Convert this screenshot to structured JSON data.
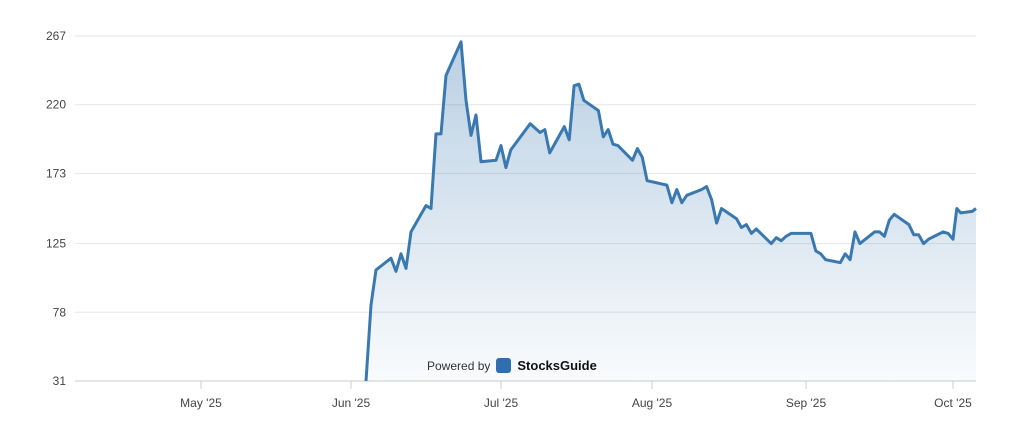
{
  "chart_data": {
    "type": "area",
    "title": "",
    "xlabel": "",
    "ylabel": "",
    "ylim": [
      31,
      267
    ],
    "y_ticks": [
      "31",
      "78",
      "125",
      "173",
      "220",
      "267"
    ],
    "x_ticks": [
      {
        "label": "May '25",
        "date": "2025-05-01"
      },
      {
        "label": "Jun '25",
        "date": "2025-06-01"
      },
      {
        "label": "Jul '25",
        "date": "2025-07-01"
      },
      {
        "label": "Aug '25",
        "date": "2025-08-01"
      },
      {
        "label": "Sep '25",
        "date": "2025-09-01"
      },
      {
        "label": "Oct '25",
        "date": "2025-10-01"
      }
    ],
    "xlim": [
      "2025-04-06",
      "2025-10-07"
    ],
    "grid": true,
    "line_color": "#3a78b0",
    "series": [
      {
        "points": [
          [
            "2025-06-04",
            31
          ],
          [
            "2025-06-05",
            83
          ],
          [
            "2025-06-06",
            107
          ],
          [
            "2025-06-09",
            115
          ],
          [
            "2025-06-10",
            106
          ],
          [
            "2025-06-11",
            118
          ],
          [
            "2025-06-12",
            108
          ],
          [
            "2025-06-13",
            133
          ],
          [
            "2025-06-16",
            151
          ],
          [
            "2025-06-17",
            149
          ],
          [
            "2025-06-18",
            200
          ],
          [
            "2025-06-19",
            200
          ],
          [
            "2025-06-20",
            240
          ],
          [
            "2025-06-23",
            263
          ],
          [
            "2025-06-24",
            223
          ],
          [
            "2025-06-25",
            199
          ],
          [
            "2025-06-26",
            213
          ],
          [
            "2025-06-27",
            181
          ],
          [
            "2025-06-30",
            182
          ],
          [
            "2025-07-01",
            192
          ],
          [
            "2025-07-02",
            177
          ],
          [
            "2025-07-03",
            189
          ],
          [
            "2025-07-07",
            207
          ],
          [
            "2025-07-08",
            204
          ],
          [
            "2025-07-09",
            201
          ],
          [
            "2025-07-10",
            203
          ],
          [
            "2025-07-11",
            187
          ],
          [
            "2025-07-14",
            205
          ],
          [
            "2025-07-15",
            196
          ],
          [
            "2025-07-16",
            233
          ],
          [
            "2025-07-17",
            234
          ],
          [
            "2025-07-18",
            223
          ],
          [
            "2025-07-21",
            216
          ],
          [
            "2025-07-22",
            198
          ],
          [
            "2025-07-23",
            203
          ],
          [
            "2025-07-24",
            193
          ],
          [
            "2025-07-25",
            192
          ],
          [
            "2025-07-28",
            182
          ],
          [
            "2025-07-29",
            190
          ],
          [
            "2025-07-30",
            184
          ],
          [
            "2025-07-31",
            168
          ],
          [
            "2025-08-04",
            165
          ],
          [
            "2025-08-05",
            153
          ],
          [
            "2025-08-06",
            162
          ],
          [
            "2025-08-07",
            153
          ],
          [
            "2025-08-08",
            158
          ],
          [
            "2025-08-11",
            162
          ],
          [
            "2025-08-12",
            164
          ],
          [
            "2025-08-13",
            155
          ],
          [
            "2025-08-14",
            139
          ],
          [
            "2025-08-15",
            149
          ],
          [
            "2025-08-18",
            142
          ],
          [
            "2025-08-19",
            136
          ],
          [
            "2025-08-20",
            138
          ],
          [
            "2025-08-21",
            132
          ],
          [
            "2025-08-22",
            135
          ],
          [
            "2025-08-25",
            125
          ],
          [
            "2025-08-26",
            129
          ],
          [
            "2025-08-27",
            127
          ],
          [
            "2025-08-28",
            130
          ],
          [
            "2025-08-29",
            132
          ],
          [
            "2025-09-02",
            132
          ],
          [
            "2025-09-03",
            120
          ],
          [
            "2025-09-04",
            118
          ],
          [
            "2025-09-05",
            114
          ],
          [
            "2025-09-08",
            112
          ],
          [
            "2025-09-09",
            118
          ],
          [
            "2025-09-10",
            114
          ],
          [
            "2025-09-11",
            133
          ],
          [
            "2025-09-12",
            125
          ],
          [
            "2025-09-15",
            133
          ],
          [
            "2025-09-16",
            133
          ],
          [
            "2025-09-17",
            130
          ],
          [
            "2025-09-18",
            141
          ],
          [
            "2025-09-19",
            145
          ],
          [
            "2025-09-22",
            138
          ],
          [
            "2025-09-23",
            131
          ],
          [
            "2025-09-24",
            131
          ],
          [
            "2025-09-25",
            125
          ],
          [
            "2025-09-26",
            128
          ],
          [
            "2025-09-29",
            133
          ],
          [
            "2025-09-30",
            132
          ],
          [
            "2025-10-01",
            128
          ],
          [
            "2025-10-02",
            149
          ],
          [
            "2025-10-03",
            146
          ],
          [
            "2025-10-06",
            147
          ],
          [
            "2025-10-07",
            149
          ]
        ]
      }
    ]
  },
  "watermark": {
    "prefix": "Powered by",
    "brand": "StocksGuide"
  }
}
